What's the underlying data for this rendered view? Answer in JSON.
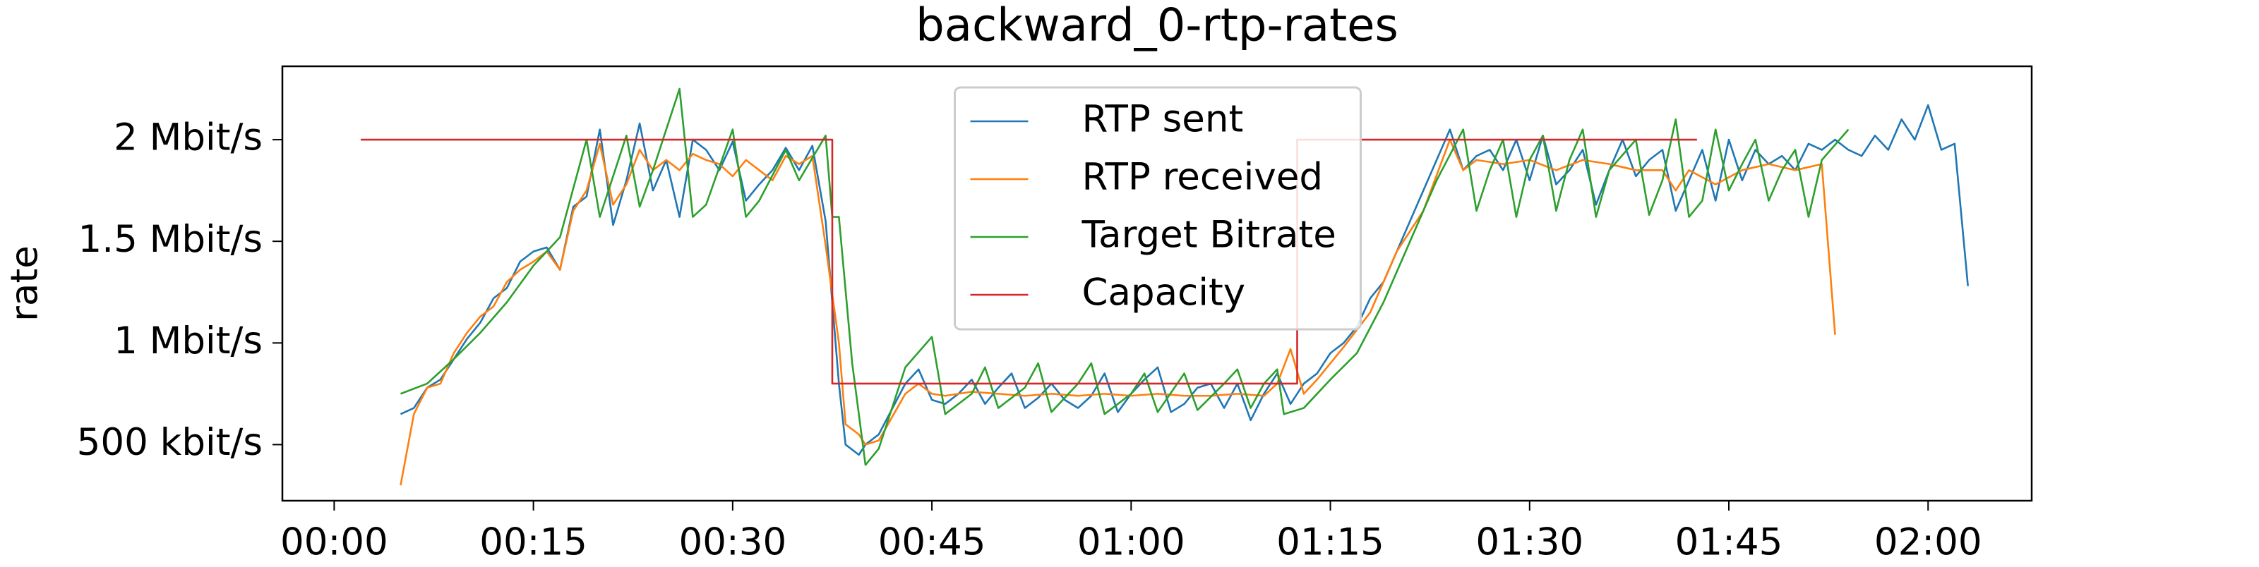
{
  "chart_data": {
    "type": "line",
    "title": "backward_0-rtp-rates",
    "y_label": "rate",
    "xlim": [
      -3.9,
      127.8
    ],
    "ylim": [
      0.224,
      2.361
    ],
    "xticks": [
      {
        "value": 0,
        "label": "00:00"
      },
      {
        "value": 15,
        "label": "00:15"
      },
      {
        "value": 30,
        "label": "00:30"
      },
      {
        "value": 45,
        "label": "00:45"
      },
      {
        "value": 60,
        "label": "01:00"
      },
      {
        "value": 75,
        "label": "01:15"
      },
      {
        "value": 90,
        "label": "01:30"
      },
      {
        "value": 105,
        "label": "01:45"
      },
      {
        "value": 120,
        "label": "02:00"
      }
    ],
    "yticks": [
      {
        "value": 0.5,
        "label": "500 kbit/s"
      },
      {
        "value": 1,
        "label": "1 Mbit/s"
      },
      {
        "value": 1.5,
        "label": "1.5 Mbit/s"
      },
      {
        "value": 2,
        "label": "2 Mbit/s"
      }
    ],
    "legend": "upper center",
    "series": [
      {
        "name": "RTP sent",
        "color": "#1f77b4",
        "x": [
          5,
          6,
          7,
          8,
          9,
          10,
          11,
          12,
          13,
          14,
          15,
          16,
          17,
          18,
          19,
          20,
          21,
          22,
          23,
          24,
          25,
          26,
          27,
          28,
          29,
          30,
          31,
          32,
          33,
          34,
          35,
          36,
          37,
          38,
          38.5,
          39.5,
          40,
          41,
          43,
          44,
          45,
          46,
          47,
          48,
          49,
          50,
          51,
          52,
          53,
          54,
          55,
          56,
          57,
          58,
          59,
          60,
          61,
          62,
          63,
          64,
          65,
          66,
          67,
          68,
          69,
          70,
          71,
          72,
          73,
          74,
          75,
          76,
          77,
          78,
          79,
          80,
          81,
          82,
          83,
          84,
          85,
          86,
          87,
          88,
          89,
          90,
          91,
          92,
          93,
          94,
          95,
          96,
          97,
          98,
          99,
          100,
          101,
          102,
          103,
          104,
          105,
          106,
          107,
          108,
          109,
          110,
          111,
          112,
          113,
          114,
          115,
          116,
          117,
          118,
          119,
          120,
          121,
          122,
          123
        ],
        "values": [
          0.65,
          0.68,
          0.78,
          0.82,
          0.92,
          1.02,
          1.1,
          1.22,
          1.27,
          1.4,
          1.45,
          1.47,
          1.36,
          1.67,
          1.72,
          2.05,
          1.58,
          1.8,
          2.08,
          1.75,
          1.9,
          1.62,
          2.0,
          1.95,
          1.85,
          1.99,
          1.7,
          1.78,
          1.85,
          1.96,
          1.85,
          1.97,
          1.6,
          0.8,
          0.5,
          0.45,
          0.5,
          0.55,
          0.8,
          0.87,
          0.72,
          0.7,
          0.75,
          0.82,
          0.7,
          0.78,
          0.85,
          0.68,
          0.73,
          0.8,
          0.72,
          0.68,
          0.74,
          0.85,
          0.66,
          0.75,
          0.82,
          0.88,
          0.66,
          0.7,
          0.78,
          0.8,
          0.68,
          0.8,
          0.62,
          0.75,
          0.85,
          0.7,
          0.8,
          0.85,
          0.95,
          1.0,
          1.08,
          1.22,
          1.3,
          1.45,
          1.6,
          1.75,
          1.9,
          2.05,
          1.85,
          1.92,
          1.95,
          1.85,
          2.0,
          1.8,
          2.02,
          1.78,
          1.85,
          1.95,
          1.68,
          1.85,
          2.0,
          1.82,
          1.9,
          1.95,
          1.65,
          1.8,
          1.95,
          1.7,
          2.0,
          1.8,
          1.95,
          1.88,
          1.92,
          1.85,
          1.98,
          1.95,
          2.0,
          1.95,
          1.92,
          2.02,
          1.95,
          2.1,
          2.0,
          2.17,
          1.95,
          1.98,
          1.28
        ]
      },
      {
        "name": "RTP received",
        "color": "#ff7f0e",
        "x": [
          5,
          6,
          7,
          8,
          9,
          10,
          11,
          12,
          13,
          14,
          15,
          16,
          17,
          18,
          19,
          20,
          21,
          22,
          23,
          24,
          25,
          26,
          27,
          28,
          29,
          30,
          31,
          32,
          33,
          34,
          35,
          36,
          37,
          38,
          38.5,
          39.5,
          40,
          41,
          43,
          44,
          45,
          46,
          48,
          50,
          52,
          54,
          56,
          58,
          60,
          62,
          64,
          66,
          68,
          70,
          71,
          72,
          73,
          74,
          76,
          78,
          80,
          82,
          84,
          85,
          86,
          88,
          90,
          92,
          94,
          96,
          98,
          100,
          101,
          102,
          104,
          106,
          108,
          110,
          112,
          113
        ],
        "values": [
          0.3,
          0.65,
          0.78,
          0.8,
          0.95,
          1.05,
          1.13,
          1.18,
          1.3,
          1.36,
          1.4,
          1.45,
          1.36,
          1.65,
          1.75,
          1.98,
          1.68,
          1.78,
          1.95,
          1.85,
          1.9,
          1.85,
          1.93,
          1.9,
          1.88,
          1.82,
          1.9,
          1.85,
          1.8,
          1.92,
          1.88,
          1.92,
          1.48,
          1.0,
          0.6,
          0.55,
          0.5,
          0.52,
          0.75,
          0.8,
          0.75,
          0.74,
          0.76,
          0.75,
          0.74,
          0.75,
          0.74,
          0.75,
          0.74,
          0.75,
          0.74,
          0.74,
          0.75,
          0.74,
          0.8,
          0.97,
          0.75,
          0.82,
          0.98,
          1.15,
          1.45,
          1.65,
          2.0,
          1.85,
          1.9,
          1.88,
          1.9,
          1.85,
          1.9,
          1.88,
          1.85,
          1.85,
          1.75,
          1.85,
          1.78,
          1.85,
          1.88,
          1.85,
          1.88,
          1.04
        ]
      },
      {
        "name": "Target Bitrate",
        "color": "#2ca02c",
        "x": [
          5,
          7,
          9,
          11,
          13,
          15,
          17,
          19,
          20,
          22,
          23,
          24,
          26,
          27,
          28,
          30,
          31,
          32,
          34,
          35,
          37,
          37.5,
          38,
          39,
          40,
          41,
          43,
          45,
          46,
          48,
          49,
          50,
          52,
          53,
          54,
          56,
          57,
          58,
          60,
          61,
          62,
          64,
          65,
          67,
          68,
          69,
          70,
          71,
          71.5,
          73,
          75,
          77,
          79,
          81,
          83,
          85,
          86,
          87,
          88,
          89,
          90,
          91,
          92,
          93,
          94,
          95,
          96,
          98,
          99,
          100,
          101,
          102,
          103,
          104,
          105,
          106,
          107,
          108,
          109,
          110,
          111,
          112,
          114
        ],
        "values": [
          0.75,
          0.8,
          0.92,
          1.05,
          1.2,
          1.38,
          1.52,
          2.0,
          1.62,
          2.02,
          1.67,
          1.85,
          2.25,
          1.62,
          1.68,
          2.05,
          1.62,
          1.7,
          1.95,
          1.8,
          2.02,
          1.62,
          1.62,
          0.9,
          0.4,
          0.48,
          0.88,
          1.03,
          0.65,
          0.75,
          0.88,
          0.68,
          0.78,
          0.9,
          0.66,
          0.8,
          0.9,
          0.65,
          0.75,
          0.85,
          0.66,
          0.85,
          0.67,
          0.8,
          0.87,
          0.68,
          0.8,
          0.87,
          0.65,
          0.68,
          0.82,
          0.95,
          1.2,
          1.5,
          1.8,
          2.05,
          1.65,
          1.85,
          2.0,
          1.62,
          1.9,
          2.02,
          1.65,
          1.9,
          2.05,
          1.62,
          1.85,
          2.0,
          1.63,
          1.8,
          2.1,
          1.62,
          1.7,
          2.05,
          1.75,
          1.88,
          2.0,
          1.7,
          1.85,
          1.95,
          1.62,
          1.9,
          2.05
        ]
      },
      {
        "name": "Capacity",
        "color": "#d62728",
        "x": [
          2,
          37.5,
          37.5,
          72.5,
          72.5,
          102.6
        ],
        "values": [
          2,
          2,
          0.8,
          0.8,
          2,
          2
        ]
      }
    ]
  }
}
